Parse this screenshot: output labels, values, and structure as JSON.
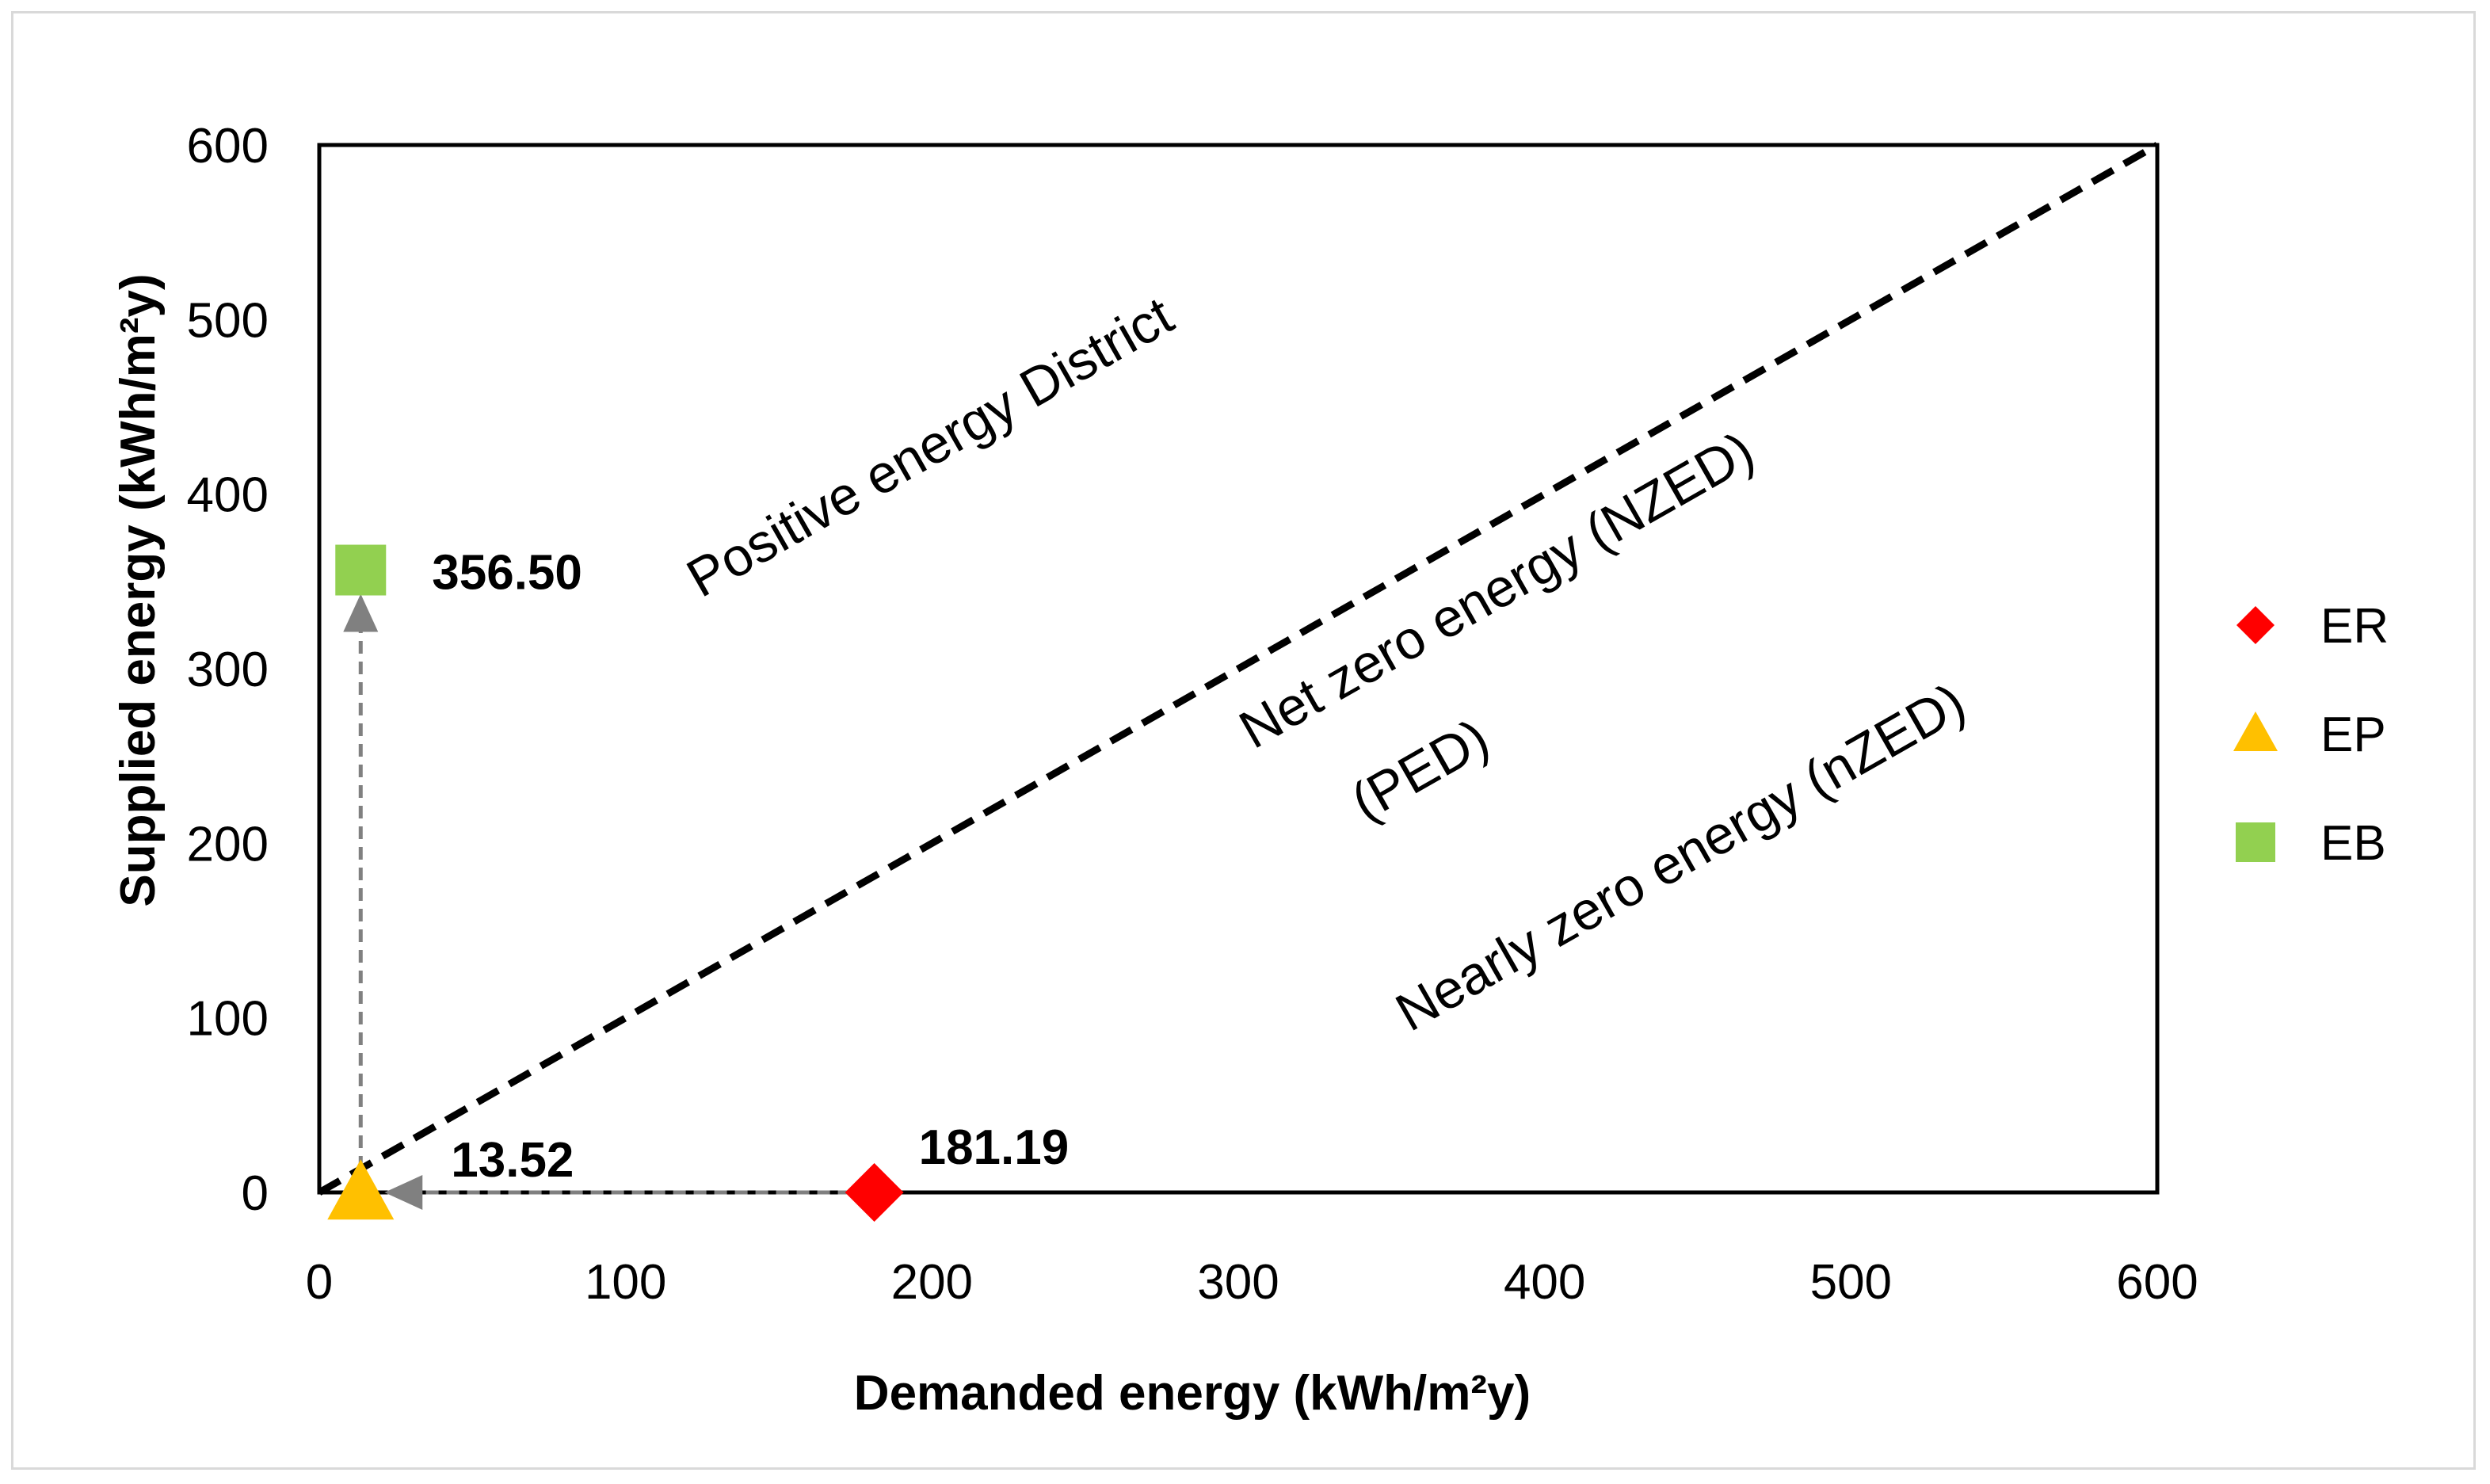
{
  "chart_data": {
    "type": "scatter",
    "title": "",
    "xlabel": "Demanded energy (kWh/m²y)",
    "ylabel": "Supplied energy (kWh/m²y)",
    "xlim": [
      0,
      600
    ],
    "ylim": [
      0,
      600
    ],
    "x_ticks": [
      0,
      100,
      200,
      300,
      400,
      500,
      600
    ],
    "y_ticks": [
      0,
      100,
      200,
      300,
      400,
      500,
      600
    ],
    "x_tick_labels": [
      "0",
      "100",
      "200",
      "300",
      "400",
      "500",
      "600"
    ],
    "y_tick_labels": [
      "0",
      "100",
      "200",
      "300",
      "400",
      "500",
      "600"
    ],
    "grid": false,
    "legend_position": "right",
    "series": [
      {
        "name": "ER",
        "marker": "diamond",
        "color": "#ff0000",
        "x": 181.19,
        "y": 0,
        "label": "181.19"
      },
      {
        "name": "EP",
        "marker": "triangle",
        "color": "#ffc000",
        "x": 13.52,
        "y": 0,
        "label": "13.52"
      },
      {
        "name": "EB",
        "marker": "square",
        "color": "#92d050",
        "x": 13.52,
        "y": 356.5,
        "label": "356.50"
      }
    ],
    "reference_line": {
      "from": [
        0,
        0
      ],
      "to": [
        600,
        600
      ],
      "style": "dashed",
      "color": "#000000"
    },
    "arrows": [
      {
        "from": [
          181.19,
          0
        ],
        "to": [
          13.52,
          0
        ],
        "color": "#808080"
      },
      {
        "from": [
          13.52,
          0
        ],
        "to": [
          13.52,
          356.5
        ],
        "color": "#808080"
      }
    ],
    "annotations": [
      {
        "text": "Positive energy District",
        "x": 200,
        "y": 425
      },
      {
        "text": "Net zero energy (NZED)",
        "x": 385,
        "y": 343
      },
      {
        "text": "(PED)",
        "x": 360,
        "y": 240
      },
      {
        "text": "Nearly zero energy (nZED)",
        "x": 445,
        "y": 190
      }
    ]
  }
}
